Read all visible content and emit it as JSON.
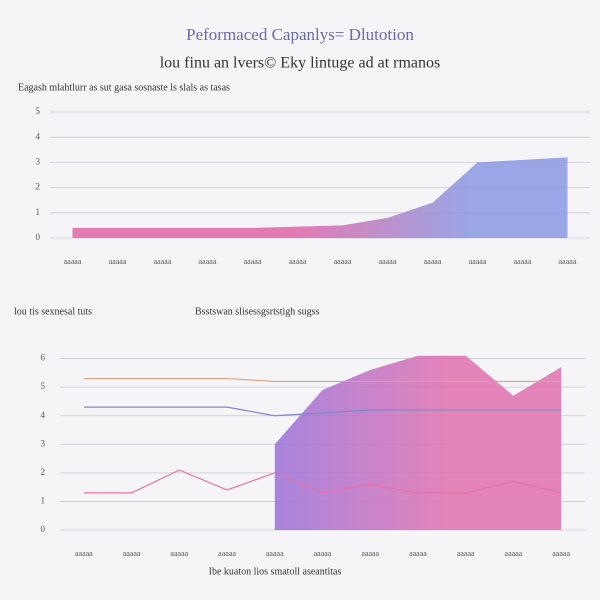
{
  "header": {
    "title": "Peformaced Capanlys= Dlutotion",
    "subtitle": "lou finu an lvers© Eky lintuge ad at rmanos"
  },
  "chart_data": [
    {
      "type": "area",
      "title": "Eagash mlahtlurr as sut gasa sosnaste ls slals as tasas",
      "categories": [
        "aaaaa",
        "aaaaa",
        "aaaaa",
        "aaaaa",
        "aaaaa",
        "aaaaa",
        "aaaaa",
        "aaaaa",
        "aaaaa",
        "aaaaa",
        "aaaaa",
        "aaaaa"
      ],
      "series": [
        {
          "colors": [
            "#e064a8",
            "#8a98e2"
          ],
          "values": [
            0.4,
            0.4,
            0.4,
            0.4,
            0.4,
            0.45,
            0.5,
            0.8,
            1.4,
            3.0,
            3.1,
            3.2
          ]
        }
      ],
      "ylim": [
        0,
        5
      ],
      "yticks": [
        0,
        1,
        2,
        3,
        4,
        5
      ],
      "grid": true
    },
    {
      "type": "area-line",
      "title": "lou tis sexnesal tuts",
      "subtitle": "Bsstswan slisessgsrtstigh sugss",
      "xlabel": "Ibe kuaton lios smatoll aseantitas",
      "categories": [
        "aaaaa",
        "aaaaa",
        "aaaaa",
        "aaaaa",
        "aaaaa",
        "aaaaa",
        "aaaaa",
        "aaaaa",
        "aaaaa",
        "aaaaa",
        "aaaaa"
      ],
      "series": [
        {
          "kind": "area",
          "colors": [
            "#9a70d8",
            "#e070b0"
          ],
          "values": [
            null,
            null,
            null,
            null,
            3.0,
            4.9,
            5.6,
            6.1,
            6.1,
            4.7,
            5.7
          ]
        },
        {
          "kind": "line",
          "color": "#e0a080",
          "values": [
            5.3,
            5.3,
            5.3,
            5.3,
            5.2,
            5.2,
            5.2,
            5.2,
            5.2,
            5.2,
            5.2
          ]
        },
        {
          "kind": "line",
          "color": "#8088c8",
          "values": [
            4.3,
            4.3,
            4.3,
            4.3,
            4.0,
            4.1,
            4.2,
            4.2,
            4.2,
            4.2,
            4.2
          ]
        },
        {
          "kind": "line",
          "color": "#e870a8",
          "values": [
            1.3,
            1.3,
            2.1,
            1.4,
            2.0,
            1.3,
            1.6,
            1.3,
            1.3,
            1.7,
            1.3
          ]
        }
      ],
      "ylim": [
        0,
        7
      ],
      "yticks": [
        0,
        1,
        2,
        3,
        4,
        5,
        6
      ],
      "grid": true
    }
  ]
}
